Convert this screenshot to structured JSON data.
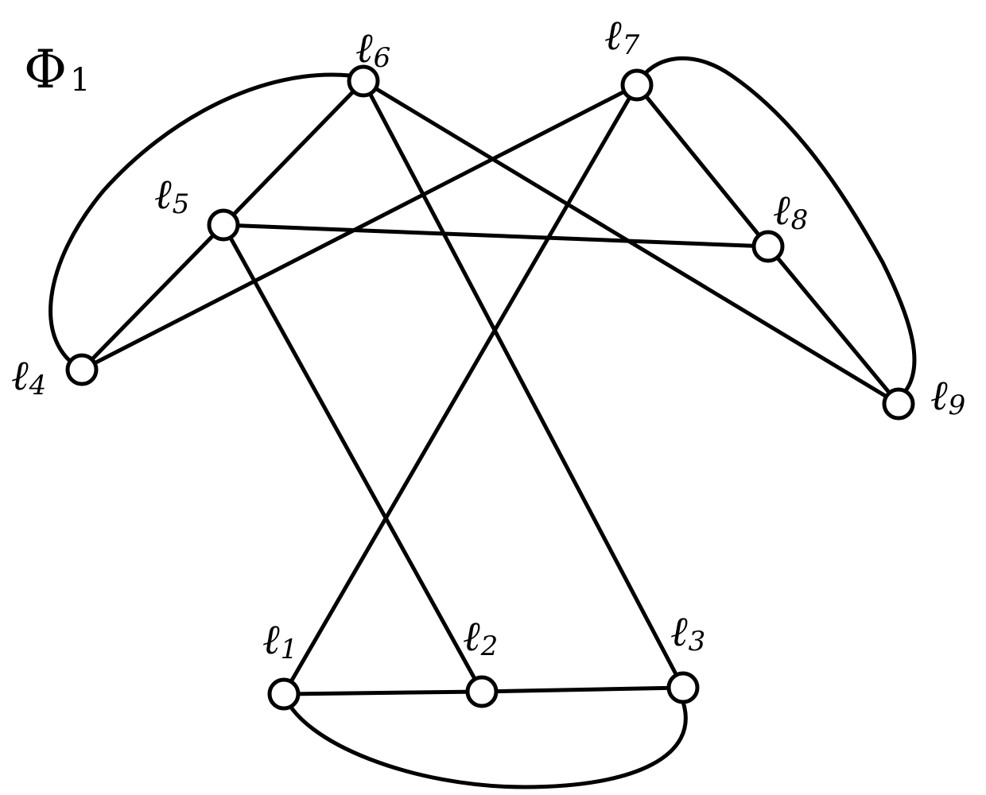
{
  "diagram": {
    "title": {
      "symbol": "Φ",
      "subscript": "1"
    },
    "colors": {
      "stroke": "#000000",
      "node_fill": "#ffffff",
      "background": "#ffffff"
    },
    "nodes": [
      {
        "id": "l1",
        "letter": "ℓ",
        "sub": "1"
      },
      {
        "id": "l2",
        "letter": "ℓ",
        "sub": "2"
      },
      {
        "id": "l3",
        "letter": "ℓ",
        "sub": "3"
      },
      {
        "id": "l4",
        "letter": "ℓ",
        "sub": "4"
      },
      {
        "id": "l5",
        "letter": "ℓ",
        "sub": "5"
      },
      {
        "id": "l6",
        "letter": "ℓ",
        "sub": "6"
      },
      {
        "id": "l7",
        "letter": "ℓ",
        "sub": "7"
      },
      {
        "id": "l8",
        "letter": "ℓ",
        "sub": "8"
      },
      {
        "id": "l9",
        "letter": "ℓ",
        "sub": "9"
      }
    ],
    "edges": [
      {
        "from": "l1",
        "to": "l2",
        "shape": "straight"
      },
      {
        "from": "l2",
        "to": "l3",
        "shape": "straight"
      },
      {
        "from": "l1",
        "to": "l3",
        "shape": "curved"
      },
      {
        "from": "l4",
        "to": "l5",
        "shape": "straight"
      },
      {
        "from": "l5",
        "to": "l6",
        "shape": "straight"
      },
      {
        "from": "l4",
        "to": "l6",
        "shape": "curved"
      },
      {
        "from": "l7",
        "to": "l8",
        "shape": "straight"
      },
      {
        "from": "l8",
        "to": "l9",
        "shape": "straight"
      },
      {
        "from": "l7",
        "to": "l9",
        "shape": "curved"
      },
      {
        "from": "l5",
        "to": "l8",
        "shape": "straight"
      },
      {
        "from": "l5",
        "to": "l2",
        "shape": "straight"
      },
      {
        "from": "l6",
        "to": "l9",
        "shape": "straight"
      },
      {
        "from": "l6",
        "to": "l3",
        "shape": "straight"
      },
      {
        "from": "l7",
        "to": "l4",
        "shape": "straight"
      },
      {
        "from": "l7",
        "to": "l1",
        "shape": "straight"
      }
    ]
  }
}
